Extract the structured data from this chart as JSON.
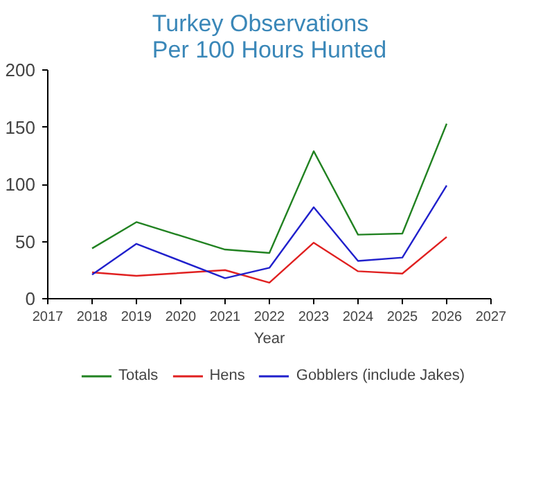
{
  "chart_data": {
    "type": "line",
    "title": "Turkey Observations\nPer 100 Hours Hunted",
    "xlabel": "Year",
    "x": [
      2018,
      2019,
      2021,
      2022,
      2023,
      2024,
      2025,
      2026
    ],
    "series": [
      {
        "name": "Totals",
        "color": "#218221",
        "values": [
          44,
          67,
          43,
          40,
          129,
          56,
          57,
          153
        ]
      },
      {
        "name": "Hens",
        "color": "#e02020",
        "values": [
          23,
          20,
          25,
          14,
          49,
          24,
          22,
          54
        ]
      },
      {
        "name": "Gobblers (include Jakes)",
        "color": "#2020cc",
        "values": [
          21,
          48,
          18,
          27,
          80,
          33,
          36,
          99
        ]
      }
    ],
    "xlim": [
      2017,
      2027
    ],
    "xticks": [
      2017,
      2018,
      2019,
      2020,
      2021,
      2022,
      2023,
      2024,
      2025,
      2026,
      2027
    ],
    "ylim": [
      0,
      200
    ],
    "yticks": [
      0,
      50,
      100,
      150,
      200
    ],
    "grid": false,
    "legend": "bottom",
    "marker": "none",
    "line_style": "solid"
  }
}
